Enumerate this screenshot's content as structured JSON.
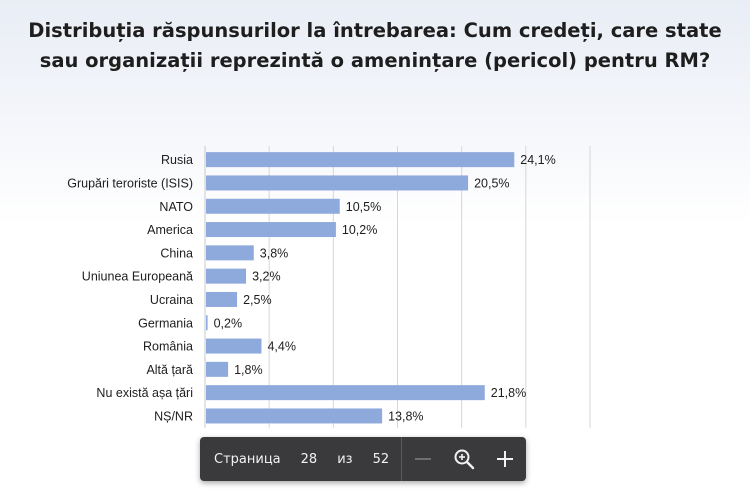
{
  "title": {
    "line1": "Distribuția răspunsurilor la întrebarea: Cum credeți, care state",
    "line2": "sau organizații reprezintă o amenințare (pericol) pentru RM?"
  },
  "chart_data": {
    "type": "bar",
    "orientation": "horizontal",
    "categories": [
      "Rusia",
      "Grupări teroriste (ISIS)",
      "NATO",
      "America",
      "China",
      "Uniunea Europeană",
      "Ucraina",
      "Germania",
      "România",
      "Altă țară",
      "Nu există așa țări",
      "NȘ/NR"
    ],
    "values": [
      24.1,
      20.5,
      10.5,
      10.2,
      3.8,
      3.2,
      2.5,
      0.2,
      4.4,
      1.8,
      21.8,
      13.8
    ],
    "value_labels": [
      "24,1%",
      "20,5%",
      "10,5%",
      "10,2%",
      "3,8%",
      "3,2%",
      "2,5%",
      "0,2%",
      "4,4%",
      "1,8%",
      "21,8%",
      "13,8%"
    ],
    "xlim": [
      0,
      30
    ],
    "grid": true,
    "bar_color": "#8ea9db"
  },
  "toolbar": {
    "page_label": "Страница",
    "current_page": "28",
    "of_label": "из",
    "total_pages": "52",
    "zoom_out_icon": "minus-icon",
    "zoom_icon": "magnifier-icon",
    "zoom_in_icon": "plus-icon"
  }
}
